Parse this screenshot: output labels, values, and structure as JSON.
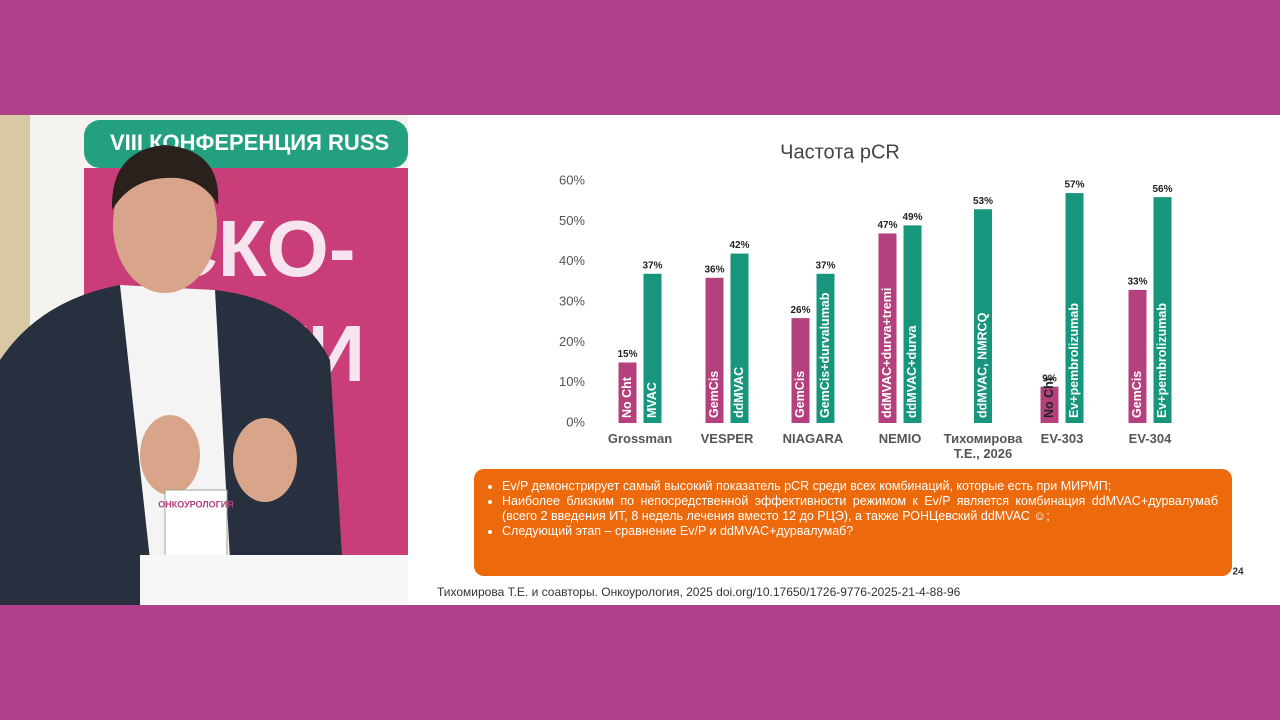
{
  "backdrop": {
    "banner": "VIII КОНФЕРЕНЦИЯ RUSS",
    "big_top": "СКО-",
    "big_bottom": "ОГИ",
    "badge": "ОНКОУРОЛОГИЯ"
  },
  "chart_data": {
    "type": "grouped-bar",
    "title": "Частота pCR",
    "ylim": [
      0,
      60
    ],
    "yticks": [
      {
        "value": 0,
        "label": "0%"
      },
      {
        "value": 10,
        "label": "10%"
      },
      {
        "value": 20,
        "label": "20%"
      },
      {
        "value": 30,
        "label": "30%"
      },
      {
        "value": 40,
        "label": "40%"
      },
      {
        "value": 50,
        "label": "50%"
      },
      {
        "value": 60,
        "label": "60%"
      }
    ],
    "groups": [
      {
        "name": "Grossman",
        "bar_labels": [
          "No Cht",
          "MVAC"
        ],
        "values": [
          15,
          37
        ],
        "value_labels": [
          "15%",
          "37%"
        ],
        "colors": [
          "#b5407e",
          "#17967d"
        ]
      },
      {
        "name": "VESPER",
        "bar_labels": [
          "GemCis",
          "ddMVAC"
        ],
        "values": [
          36,
          42
        ],
        "value_labels": [
          "36%",
          "42%"
        ],
        "colors": [
          "#b5407e",
          "#17967d"
        ]
      },
      {
        "name": "NIAGARA",
        "bar_labels": [
          "GemCis",
          "GemCis+durvalumab"
        ],
        "values": [
          26,
          37
        ],
        "value_labels": [
          "26%",
          "37%"
        ],
        "colors": [
          "#b5407e",
          "#17967d"
        ]
      },
      {
        "name": "NEMIO",
        "bar_labels": [
          "ddMVAC+durva+tremi",
          "ddMVAC+durva"
        ],
        "values": [
          47,
          49
        ],
        "value_labels": [
          "47%",
          "49%"
        ],
        "colors": [
          "#b5407e",
          "#17967d"
        ]
      },
      {
        "name": "Тихомирова Т.Е., 2026",
        "bar_labels": [
          "ddMVAC, NMRCQ"
        ],
        "values": [
          53
        ],
        "value_labels": [
          "53%"
        ],
        "colors": [
          "#17967d"
        ]
      },
      {
        "name": "EV-303",
        "bar_labels": [
          "No Cht",
          "Ev+pembrolizumab"
        ],
        "values": [
          9,
          57
        ],
        "value_labels": [
          "9%",
          "57%"
        ],
        "colors": [
          "#b5407e",
          "#17967d"
        ]
      },
      {
        "name": "EV-304",
        "bar_labels": [
          "GemCis",
          "Ev+pembrolizumab"
        ],
        "values": [
          33,
          56
        ],
        "value_labels": [
          "33%",
          "56%"
        ],
        "colors": [
          "#b5407e",
          "#17967d"
        ]
      }
    ]
  },
  "notes": {
    "bullets": [
      "Ev/P демонстрирует самый высокий показатель pCR среди всех комбинаций, которые есть при МИРМП;",
      "Наиболее близким по непосредственной эффективности режимом к Ev/P является комбинация ddMVAC+дурвалумаб (всего 2 введения ИТ, 8 недель лечения вместо 12 до РЦЭ), а также РОНЦевский ddMVAC ☺;",
      "Следующий этап – сравнение Ev/P и ddMVAC+дурвалумаб?"
    ],
    "slide_number": "24",
    "citation": "Тихомирова Т.Е. и соавторы. Онкоурология, 2025 doi.org/10.17650/1726-9776-2025-21-4-88-96"
  }
}
